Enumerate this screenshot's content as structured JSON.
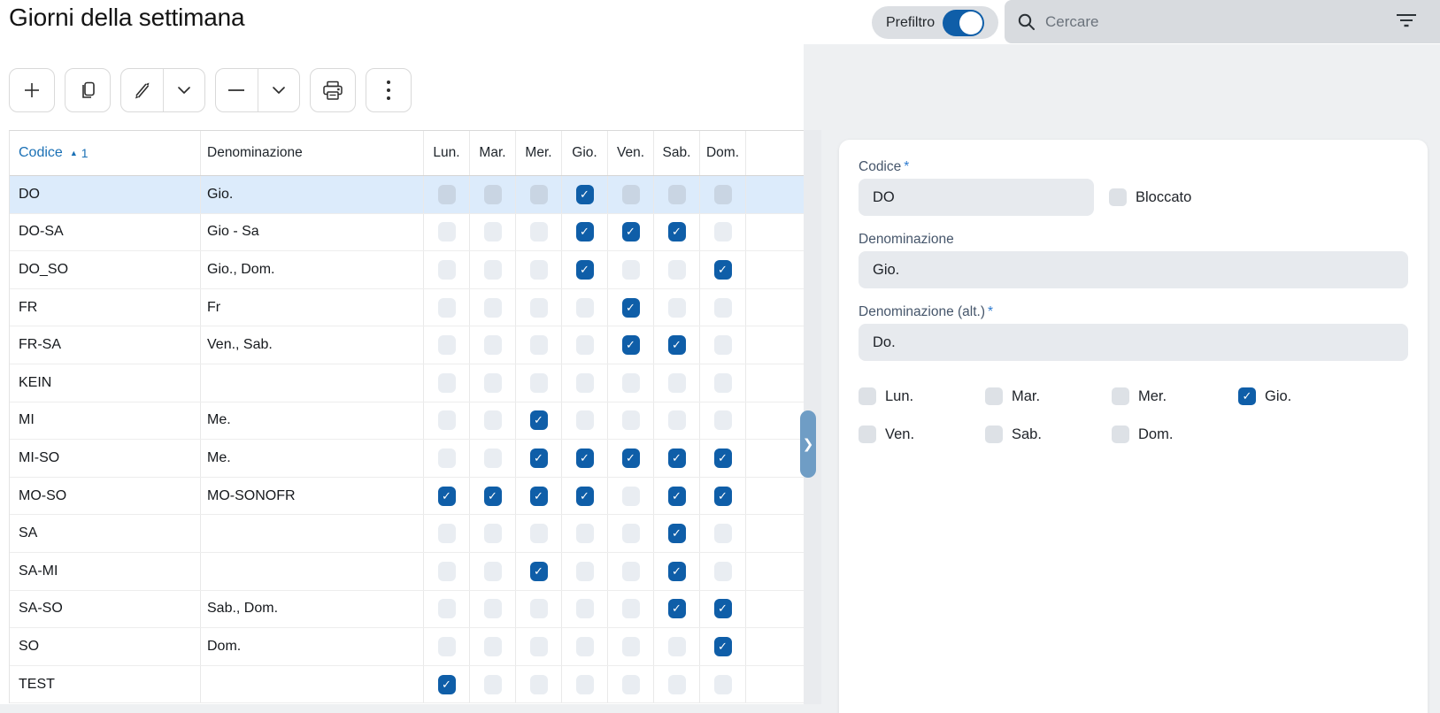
{
  "page": {
    "title": "Giorni della settimana"
  },
  "header": {
    "prefilter": {
      "label": "Prefiltro",
      "enabled": true
    },
    "search": {
      "placeholder": "Cercare",
      "value": ""
    }
  },
  "toolbar": {
    "buttons": [
      {
        "name": "add",
        "icon": "plus-icon"
      },
      {
        "name": "copy",
        "icon": "copy-icon"
      },
      {
        "name": "edit",
        "icon": "pencil-icon",
        "has_menu": true,
        "menu_icon": "chevron-down-icon"
      },
      {
        "name": "delete",
        "icon": "minus-icon",
        "has_menu": true,
        "menu_icon": "chevron-down-icon"
      },
      {
        "name": "print",
        "icon": "printer-icon"
      },
      {
        "name": "more",
        "icon": "kebab-menu-icon"
      }
    ]
  },
  "table": {
    "columns": {
      "code": {
        "label": "Codice",
        "sort": "asc",
        "sort_indicator": "▲",
        "sort_order": "1"
      },
      "name": {
        "label": "Denominazione"
      }
    },
    "day_columns": [
      "Lun.",
      "Mar.",
      "Mer.",
      "Gio.",
      "Ven.",
      "Sab.",
      "Dom."
    ],
    "rows": [
      {
        "code": "DO",
        "name": "Gio.",
        "days": [
          0,
          0,
          0,
          1,
          0,
          0,
          0
        ],
        "selected": true
      },
      {
        "code": "DO-SA",
        "name": "Gio - Sa",
        "days": [
          0,
          0,
          0,
          1,
          1,
          1,
          0
        ],
        "selected": false
      },
      {
        "code": "DO_SO",
        "name": "Gio., Dom.",
        "days": [
          0,
          0,
          0,
          1,
          0,
          0,
          1
        ],
        "selected": false
      },
      {
        "code": "FR",
        "name": "Fr",
        "days": [
          0,
          0,
          0,
          0,
          1,
          0,
          0
        ],
        "selected": false
      },
      {
        "code": "FR-SA",
        "name": "Ven., Sab.",
        "days": [
          0,
          0,
          0,
          0,
          1,
          1,
          0
        ],
        "selected": false
      },
      {
        "code": "KEIN",
        "name": "",
        "days": [
          0,
          0,
          0,
          0,
          0,
          0,
          0
        ],
        "selected": false
      },
      {
        "code": "MI",
        "name": "Me.",
        "days": [
          0,
          0,
          1,
          0,
          0,
          0,
          0
        ],
        "selected": false
      },
      {
        "code": "MI-SO",
        "name": "Me.",
        "days": [
          0,
          0,
          1,
          1,
          1,
          1,
          1
        ],
        "selected": false
      },
      {
        "code": "MO-SO",
        "name": "MO-SONOFR",
        "days": [
          1,
          1,
          1,
          1,
          0,
          1,
          1
        ],
        "selected": false
      },
      {
        "code": "SA",
        "name": "",
        "days": [
          0,
          0,
          0,
          0,
          0,
          1,
          0
        ],
        "selected": false
      },
      {
        "code": "SA-MI",
        "name": "",
        "days": [
          0,
          0,
          1,
          0,
          0,
          1,
          0
        ],
        "selected": false
      },
      {
        "code": "SA-SO",
        "name": "Sab., Dom.",
        "days": [
          0,
          0,
          0,
          0,
          0,
          1,
          1
        ],
        "selected": false
      },
      {
        "code": "SO",
        "name": "Dom.",
        "days": [
          0,
          0,
          0,
          0,
          0,
          0,
          1
        ],
        "selected": false
      },
      {
        "code": "TEST",
        "name": "",
        "days": [
          1,
          0,
          0,
          0,
          0,
          0,
          0
        ],
        "selected": false
      }
    ]
  },
  "splitter": {
    "icon": "chevron-right-icon",
    "glyph": "❯"
  },
  "detail": {
    "codice": {
      "label": "Codice",
      "required": true,
      "star": "*",
      "value": "DO"
    },
    "bloccato": {
      "label": "Bloccato",
      "checked": false
    },
    "denominazione": {
      "label": "Denominazione",
      "required": false,
      "value": "Gio."
    },
    "denominazione_alt": {
      "label": "Denominazione (alt.)",
      "required": true,
      "star": "*",
      "value": "Do."
    },
    "days": [
      {
        "label": "Lun.",
        "checked": false
      },
      {
        "label": "Mar.",
        "checked": false
      },
      {
        "label": "Mer.",
        "checked": false
      },
      {
        "label": "Gio.",
        "checked": true
      },
      {
        "label": "Ven.",
        "checked": false
      },
      {
        "label": "Sab.",
        "checked": false
      },
      {
        "label": "Dom.",
        "checked": false
      }
    ]
  },
  "colors": {
    "accent_blue": "#0f5ea8",
    "link_blue": "#1a70b5",
    "selected_row": "#dcebfb",
    "unchecked_box": "#e9edf2",
    "unchecked_box_selected_row": "#c9d5e3",
    "panel_backdrop": "#eef0f2",
    "search_bg": "#d8dbdf",
    "input_bg": "#e7eaee",
    "splitter_handle": "#6f9dc5"
  },
  "checkmark_glyph": "✓"
}
